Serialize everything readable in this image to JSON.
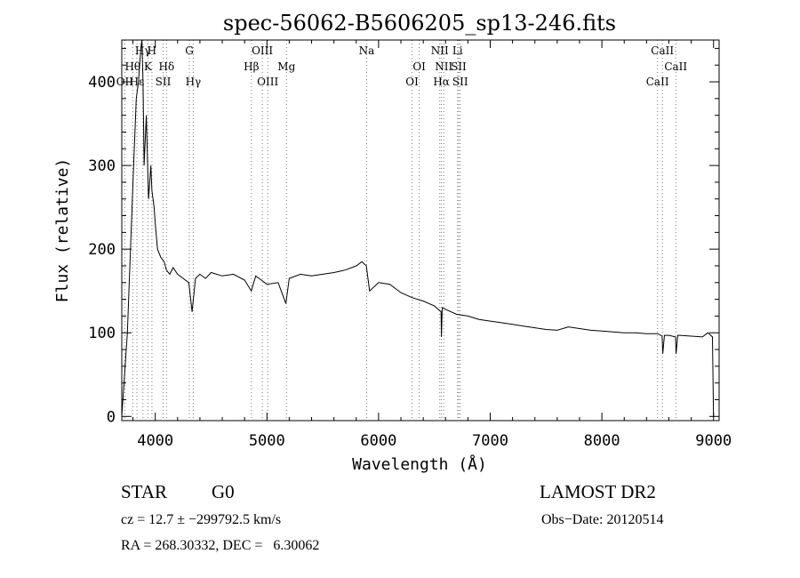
{
  "chart_data": {
    "type": "line",
    "title": "spec-56062-B5606205_sp13-246.fits",
    "xlabel": "Wavelength (Å)",
    "ylabel": "Flux (relative)",
    "xlim": [
      3700,
      9050
    ],
    "ylim": [
      -5,
      450
    ],
    "xticks": [
      4000,
      5000,
      6000,
      7000,
      8000,
      9000
    ],
    "yticks": [
      0,
      100,
      200,
      300,
      400
    ],
    "grid": false,
    "legend": "none",
    "series": [
      {
        "x": [
          3700,
          3750,
          3800,
          3830,
          3850,
          3860,
          3870,
          3880,
          3890,
          3900,
          3920,
          3940,
          3960,
          3970,
          3990,
          4000,
          4020,
          4050,
          4080,
          4100,
          4130,
          4160,
          4200,
          4250,
          4300,
          4330,
          4360,
          4400,
          4450,
          4500,
          4600,
          4700,
          4800,
          4860,
          4900,
          4950,
          5000,
          5100,
          5170,
          5200,
          5300,
          5400,
          5500,
          5600,
          5700,
          5800,
          5850,
          5890,
          5920,
          6000,
          6100,
          6200,
          6300,
          6400,
          6500,
          6560,
          6563,
          6570,
          6600,
          6700,
          6800,
          6900,
          7000,
          7100,
          7200,
          7300,
          7400,
          7500,
          7600,
          7700,
          7800,
          7900,
          8000,
          8100,
          8200,
          8300,
          8400,
          8500,
          8540,
          8545,
          8560,
          8600,
          8660,
          8665,
          8680,
          8700,
          8800,
          8900,
          8950,
          8990,
          9000
        ],
        "values": [
          0,
          100,
          280,
          380,
          400,
          420,
          440,
          450,
          400,
          300,
          360,
          260,
          300,
          270,
          250,
          230,
          200,
          190,
          185,
          175,
          170,
          178,
          170,
          165,
          160,
          125,
          165,
          170,
          165,
          172,
          168,
          170,
          163,
          150,
          168,
          163,
          158,
          160,
          135,
          165,
          170,
          168,
          170,
          172,
          175,
          180,
          185,
          180,
          150,
          160,
          158,
          148,
          142,
          138,
          132,
          125,
          95,
          130,
          128,
          122,
          120,
          116,
          114,
          112,
          110,
          108,
          106,
          104,
          103,
          107,
          105,
          103,
          102,
          101,
          100,
          100,
          99,
          99,
          96,
          75,
          97,
          97,
          95,
          75,
          97,
          97,
          96,
          95,
          100,
          95,
          0
        ]
      }
    ]
  },
  "lines": {
    "row1": [
      {
        "label": "Hγ",
        "x": 3889
      },
      {
        "label": "H",
        "x": 3970
      },
      {
        "label": "G",
        "x": 4305
      },
      {
        "label": "OIII",
        "x": 4959
      },
      {
        "label": "Na",
        "x": 5893
      },
      {
        "label": "NII",
        "x": 6548
      },
      {
        "label": "Li",
        "x": 6708
      },
      {
        "label": "CaII",
        "x": 8542
      }
    ],
    "row2": [
      {
        "label": "Hθ",
        "x": 3798
      },
      {
        "label": "K",
        "x": 3934
      },
      {
        "label": "Hδ",
        "x": 4101
      },
      {
        "label": "Hβ",
        "x": 4861
      },
      {
        "label": "Mg",
        "x": 5175
      },
      {
        "label": "OI",
        "x": 6364
      },
      {
        "label": "NII",
        "x": 6584
      },
      {
        "label": "SII",
        "x": 6717
      },
      {
        "label": "CaII",
        "x": 8662
      }
    ],
    "row3": [
      {
        "label": "OII",
        "x": 3727
      },
      {
        "label": "Hε",
        "x": 3835
      },
      {
        "label": "SII",
        "x": 4070
      },
      {
        "label": "Hγ",
        "x": 4340
      },
      {
        "label": "OIII",
        "x": 5007
      },
      {
        "label": "OI",
        "x": 6300
      },
      {
        "label": "Hα",
        "x": 6563
      },
      {
        "label": "SII",
        "x": 6731
      },
      {
        "label": "CaII",
        "x": 8498
      }
    ],
    "dotted_x": [
      3727,
      3798,
      3835,
      3889,
      3934,
      3970,
      4070,
      4101,
      4305,
      4340,
      4861,
      4959,
      5007,
      5175,
      5893,
      6300,
      6364,
      6548,
      6563,
      6584,
      6708,
      6717,
      6731,
      8498,
      8542,
      8662
    ]
  },
  "info": {
    "object_class": "STAR",
    "subclass": "G0",
    "survey": "LAMOST DR2",
    "cz_line": "cz = 12.7 ± −299792.5 km/s",
    "obs_date": "Obs−Date: 20120514",
    "radec_line": "RA = 268.30332, DEC =   6.30062"
  }
}
